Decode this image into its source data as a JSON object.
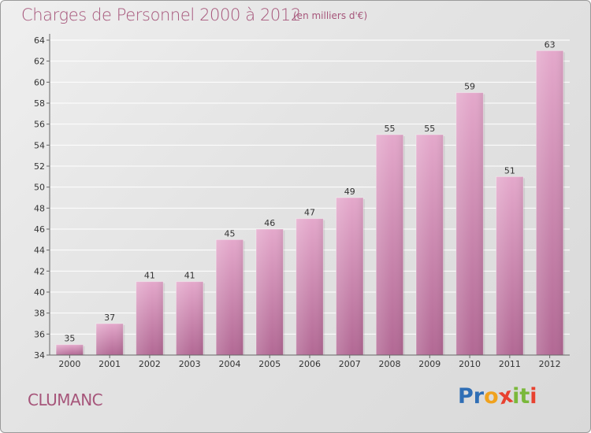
{
  "title": "Charges de Personnel 2000 à 2012",
  "subtitle": "(en milliers d'€)",
  "commune": "CLUMANC",
  "logo": {
    "letters": [
      "P",
      "r",
      "o",
      "x",
      "i",
      "t",
      "i"
    ],
    "colors": [
      "#2f6eb5",
      "#2f6eb5",
      "#f0a21e",
      "#e8412f",
      "#7ab83a",
      "#7ab83a",
      "#e8412f"
    ]
  },
  "colors": {
    "accent": "#a6557a",
    "bar_top": "#e4a8cb",
    "bar_bottom": "#b26894",
    "grid": "#ffffff"
  },
  "chart_data": {
    "type": "bar",
    "categories": [
      "2000",
      "2001",
      "2002",
      "2003",
      "2004",
      "2005",
      "2006",
      "2007",
      "2008",
      "2009",
      "2010",
      "2011",
      "2012"
    ],
    "values": [
      35,
      37,
      41,
      41,
      45,
      46,
      47,
      49,
      55,
      55,
      59,
      51,
      63
    ],
    "data_labels": [
      "35",
      "37",
      "41",
      "41",
      "45",
      "46",
      "47",
      "49",
      "55",
      "55",
      "59",
      "51",
      "63"
    ],
    "title": "Charges de Personnel 2000 à 2012",
    "subtitle": "(en milliers d'€)",
    "xlabel": "",
    "ylabel": "",
    "ylim": [
      34,
      64
    ],
    "yticks": [
      "34",
      "36",
      "38",
      "40",
      "42",
      "44",
      "46",
      "48",
      "50",
      "52",
      "54",
      "56",
      "58",
      "60",
      "62",
      "64"
    ],
    "grid": true,
    "legend": false
  }
}
